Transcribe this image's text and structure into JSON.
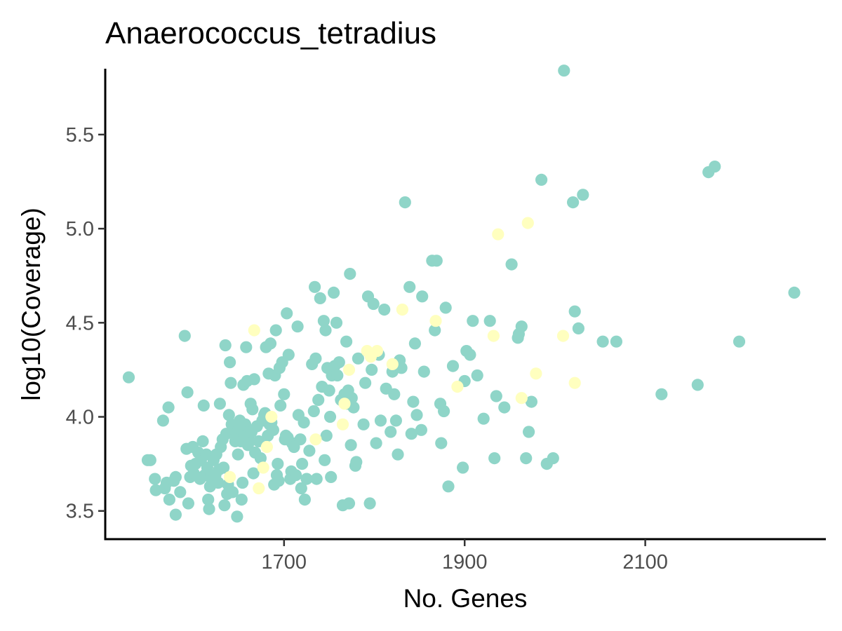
{
  "chart_data": {
    "type": "scatter",
    "title": "Anaerococcus_tetradius",
    "xlabel": "No. Genes",
    "ylabel": "log10(Coverage)",
    "xlim": [
      1502,
      2300
    ],
    "ylim": [
      3.35,
      5.85
    ],
    "xticks": [
      1700,
      1900,
      2100
    ],
    "yticks": [
      3.5,
      4.0,
      4.5,
      5.0,
      5.5
    ],
    "grid": false,
    "legend": "none",
    "series": [
      {
        "color": "#8fd5c8",
        "points": [
          [
            1528,
            4.21
          ],
          [
            1549,
            3.77
          ],
          [
            1552,
            3.77
          ],
          [
            1557,
            3.67
          ],
          [
            1558,
            3.61
          ],
          [
            1566,
            3.98
          ],
          [
            1568,
            3.62
          ],
          [
            1570,
            3.65
          ],
          [
            1572,
            4.05
          ],
          [
            1573,
            3.56
          ],
          [
            1578,
            3.66
          ],
          [
            1580,
            3.68
          ],
          [
            1580,
            3.48
          ],
          [
            1585,
            3.6
          ],
          [
            1590,
            4.43
          ],
          [
            1592,
            3.83
          ],
          [
            1593,
            4.13
          ],
          [
            1594,
            3.54
          ],
          [
            1596,
            3.68
          ],
          [
            1597,
            3.74
          ],
          [
            1599,
            3.84
          ],
          [
            1600,
            3.7
          ],
          [
            1602,
            3.75
          ],
          [
            1605,
            3.81
          ],
          [
            1607,
            3.67
          ],
          [
            1608,
            3.77
          ],
          [
            1610,
            3.87
          ],
          [
            1611,
            4.06
          ],
          [
            1612,
            3.69
          ],
          [
            1614,
            3.8
          ],
          [
            1615,
            3.73
          ],
          [
            1616,
            3.56
          ],
          [
            1617,
            3.51
          ],
          [
            1618,
            3.63
          ],
          [
            1619,
            3.69
          ],
          [
            1620,
            3.66
          ],
          [
            1622,
            3.77
          ],
          [
            1624,
            3.69
          ],
          [
            1625,
            3.8
          ],
          [
            1627,
            3.65
          ],
          [
            1628,
            3.72
          ],
          [
            1629,
            4.07
          ],
          [
            1630,
            3.84
          ],
          [
            1632,
            3.88
          ],
          [
            1633,
            3.73
          ],
          [
            1634,
            3.53
          ],
          [
            1635,
            4.38
          ],
          [
            1636,
            3.91
          ],
          [
            1637,
            3.59
          ],
          [
            1638,
            3.64
          ],
          [
            1639,
            4.01
          ],
          [
            1640,
            4.29
          ],
          [
            1641,
            4.18
          ],
          [
            1642,
            3.96
          ],
          [
            1643,
            3.6
          ],
          [
            1645,
            3.93
          ],
          [
            1646,
            3.87
          ],
          [
            1647,
            3.91
          ],
          [
            1648,
            3.47
          ],
          [
            1649,
            3.8
          ],
          [
            1650,
            3.94
          ],
          [
            1651,
            3.98
          ],
          [
            1652,
            3.87
          ],
          [
            1653,
            3.56
          ],
          [
            1654,
            3.65
          ],
          [
            1655,
            4.17
          ],
          [
            1656,
            3.9
          ],
          [
            1657,
            3.96
          ],
          [
            1658,
            4.37
          ],
          [
            1659,
            4.19
          ],
          [
            1660,
            3.85
          ],
          [
            1661,
            3.92
          ],
          [
            1662,
            3.87
          ],
          [
            1663,
            4.07
          ],
          [
            1664,
            3.92
          ],
          [
            1665,
            4.04
          ],
          [
            1666,
            3.7
          ],
          [
            1667,
            4.2
          ],
          [
            1668,
            3.81
          ],
          [
            1670,
            3.95
          ],
          [
            1672,
            3.87
          ],
          [
            1674,
            3.78
          ],
          [
            1676,
            3.98
          ],
          [
            1678,
            4.01
          ],
          [
            1679,
            4.02
          ],
          [
            1680,
            4.37
          ],
          [
            1682,
            3.9
          ],
          [
            1683,
            4.23
          ],
          [
            1684,
            3.96
          ],
          [
            1685,
            4.39
          ],
          [
            1686,
            3.97
          ],
          [
            1688,
            3.93
          ],
          [
            1689,
            3.64
          ],
          [
            1690,
            4.22
          ],
          [
            1691,
            4.46
          ],
          [
            1692,
            3.69
          ],
          [
            1693,
            3.75
          ],
          [
            1694,
            3.66
          ],
          [
            1695,
            4.26
          ],
          [
            1696,
            4.06
          ],
          [
            1698,
            4.29
          ],
          [
            1700,
            4.12
          ],
          [
            1701,
            3.88
          ],
          [
            1702,
            3.9
          ],
          [
            1703,
            4.55
          ],
          [
            1704,
            3.89
          ],
          [
            1705,
            4.33
          ],
          [
            1707,
            3.67
          ],
          [
            1708,
            3.71
          ],
          [
            1709,
            3.86
          ],
          [
            1711,
            3.84
          ],
          [
            1713,
            3.69
          ],
          [
            1715,
            4.48
          ],
          [
            1716,
            4.01
          ],
          [
            1718,
            3.88
          ],
          [
            1719,
            3.62
          ],
          [
            1720,
            3.75
          ],
          [
            1722,
            3.97
          ],
          [
            1723,
            3.56
          ],
          [
            1725,
            3.67
          ],
          [
            1728,
            3.82
          ],
          [
            1731,
            4.28
          ],
          [
            1733,
            4.03
          ],
          [
            1734,
            4.69
          ],
          [
            1735,
            4.31
          ],
          [
            1736,
            3.67
          ],
          [
            1738,
            4.09
          ],
          [
            1740,
            4.63
          ],
          [
            1742,
            4.16
          ],
          [
            1744,
            4.51
          ],
          [
            1745,
            3.77
          ],
          [
            1746,
            4.46
          ],
          [
            1747,
            3.9
          ],
          [
            1748,
            4.26
          ],
          [
            1750,
            4.14
          ],
          [
            1751,
            4.0
          ],
          [
            1752,
            3.68
          ],
          [
            1753,
            4.22
          ],
          [
            1755,
            4.66
          ],
          [
            1756,
            4.27
          ],
          [
            1758,
            4.5
          ],
          [
            1759,
            4.22
          ],
          [
            1761,
            4.29
          ],
          [
            1763,
            4.09
          ],
          [
            1765,
            3.53
          ],
          [
            1767,
            4.12
          ],
          [
            1769,
            4.4
          ],
          [
            1770,
            4.07
          ],
          [
            1771,
            4.14
          ],
          [
            1772,
            3.54
          ],
          [
            1773,
            4.76
          ],
          [
            1774,
            3.85
          ],
          [
            1775,
            4.1
          ],
          [
            1777,
            4.05
          ],
          [
            1779,
            3.74
          ],
          [
            1780,
            3.76
          ],
          [
            1782,
            4.31
          ],
          [
            1788,
            3.96
          ],
          [
            1790,
            4.18
          ],
          [
            1793,
            4.64
          ],
          [
            1795,
            3.54
          ],
          [
            1797,
            4.25
          ],
          [
            1799,
            4.6
          ],
          [
            1802,
            3.86
          ],
          [
            1805,
            4.33
          ],
          [
            1807,
            3.98
          ],
          [
            1811,
            4.57
          ],
          [
            1813,
            4.15
          ],
          [
            1818,
            3.92
          ],
          [
            1820,
            4.24
          ],
          [
            1822,
            4.12
          ],
          [
            1824,
            3.98
          ],
          [
            1826,
            3.8
          ],
          [
            1828,
            4.3
          ],
          [
            1830,
            4.26
          ],
          [
            1834,
            5.14
          ],
          [
            1839,
            4.69
          ],
          [
            1841,
            3.91
          ],
          [
            1843,
            4.08
          ],
          [
            1845,
            4.39
          ],
          [
            1847,
            4.01
          ],
          [
            1852,
            3.93
          ],
          [
            1853,
            4.64
          ],
          [
            1855,
            4.24
          ],
          [
            1864,
            4.83
          ],
          [
            1867,
            4.46
          ],
          [
            1869,
            4.83
          ],
          [
            1873,
            4.07
          ],
          [
            1874,
            3.86
          ],
          [
            1877,
            4.03
          ],
          [
            1879,
            4.58
          ],
          [
            1882,
            3.63
          ],
          [
            1887,
            4.27
          ],
          [
            1898,
            3.73
          ],
          [
            1900,
            4.19
          ],
          [
            1902,
            4.35
          ],
          [
            1906,
            4.33
          ],
          [
            1909,
            4.51
          ],
          [
            1914,
            4.22
          ],
          [
            1921,
            3.99
          ],
          [
            1928,
            4.51
          ],
          [
            1933,
            3.78
          ],
          [
            1935,
            4.11
          ],
          [
            1944,
            4.05
          ],
          [
            1952,
            4.81
          ],
          [
            1959,
            4.42
          ],
          [
            1960,
            4.44
          ],
          [
            1963,
            4.48
          ],
          [
            1968,
            3.78
          ],
          [
            1971,
            3.92
          ],
          [
            1974,
            4.08
          ],
          [
            1985,
            5.26
          ],
          [
            1991,
            3.75
          ],
          [
            1998,
            3.78
          ],
          [
            2010,
            5.84
          ],
          [
            2020,
            5.14
          ],
          [
            2022,
            4.56
          ],
          [
            2026,
            4.47
          ],
          [
            2031,
            5.18
          ],
          [
            2053,
            4.4
          ],
          [
            2068,
            4.4
          ],
          [
            2118,
            4.12
          ],
          [
            2158,
            4.17
          ],
          [
            2170,
            5.3
          ],
          [
            2177,
            5.33
          ],
          [
            2204,
            4.4
          ],
          [
            2265,
            4.66
          ]
        ]
      },
      {
        "color": "#ffffbf",
        "points": [
          [
            1640,
            3.68
          ],
          [
            1667,
            4.46
          ],
          [
            1672,
            3.62
          ],
          [
            1677,
            3.73
          ],
          [
            1681,
            3.84
          ],
          [
            1686,
            4.0
          ],
          [
            1735,
            3.88
          ],
          [
            1765,
            3.96
          ],
          [
            1767,
            4.07
          ],
          [
            1772,
            4.25
          ],
          [
            1792,
            4.35
          ],
          [
            1796,
            4.32
          ],
          [
            1803,
            4.35
          ],
          [
            1820,
            4.28
          ],
          [
            1831,
            4.57
          ],
          [
            1868,
            4.51
          ],
          [
            1892,
            4.16
          ],
          [
            1932,
            4.43
          ],
          [
            1937,
            4.97
          ],
          [
            1963,
            4.1
          ],
          [
            1970,
            5.03
          ],
          [
            1979,
            4.23
          ],
          [
            2009,
            4.43
          ],
          [
            2022,
            4.18
          ]
        ]
      }
    ]
  }
}
